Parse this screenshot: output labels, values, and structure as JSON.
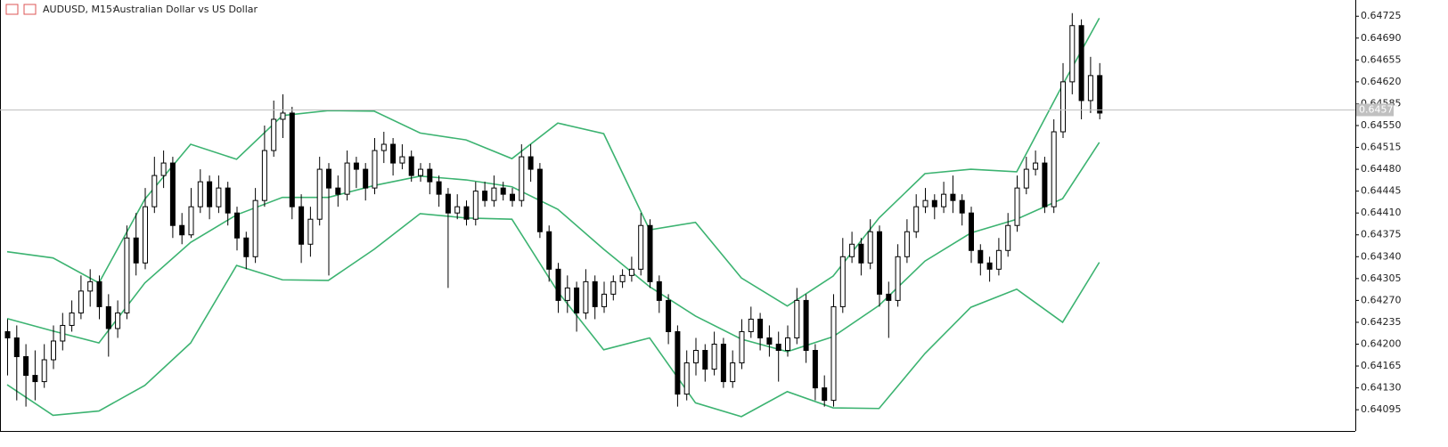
{
  "chart_data": {
    "type": "candlestick",
    "symbol": "AUDUSD, M15:",
    "title": "Australian Dollar vs US Dollar",
    "ylim": [
      0.64061,
      0.64751
    ],
    "yticks": [
      0.64725,
      {
        "value": 0.6469,
        "label": "0.64690"
      },
      0.64655,
      {
        "value": 0.6462,
        "label": "0.64620"
      },
      0.64585,
      {
        "value": 0.6455,
        "label": "0.64550"
      },
      0.64515,
      {
        "value": 0.6448,
        "label": "0.64480"
      },
      0.64445,
      {
        "value": 0.6441,
        "label": "0.64410"
      },
      0.64375,
      {
        "value": 0.6434,
        "label": "0.64340"
      },
      0.64305,
      {
        "value": 0.6427,
        "label": "0.64270"
      },
      0.64235,
      {
        "value": 0.642,
        "label": "0.64200"
      },
      0.64165,
      {
        "value": 0.6413,
        "label": "0.64130"
      },
      0.64095
    ],
    "last_price": 0.64575,
    "up_color": "#ffffff",
    "down_color": "#000000",
    "ohlc": [
      [
        0.6422,
        0.6424,
        0.6415,
        0.6421
      ],
      [
        0.6421,
        0.6423,
        0.6411,
        0.6418
      ],
      [
        0.6418,
        0.642,
        0.641,
        0.6415
      ],
      [
        0.6415,
        0.6419,
        0.6411,
        0.6414
      ],
      [
        0.6414,
        0.642,
        0.6413,
        0.64175
      ],
      [
        0.64175,
        0.6423,
        0.6416,
        0.64205
      ],
      [
        0.64205,
        0.6425,
        0.6419,
        0.6423
      ],
      [
        0.6423,
        0.6427,
        0.6422,
        0.6425
      ],
      [
        0.6425,
        0.6431,
        0.6424,
        0.64285
      ],
      [
        0.64285,
        0.6432,
        0.6426,
        0.643
      ],
      [
        0.643,
        0.6431,
        0.6424,
        0.6426
      ],
      [
        0.6426,
        0.6428,
        0.6418,
        0.64225
      ],
      [
        0.64225,
        0.6427,
        0.6421,
        0.6425
      ],
      [
        0.6425,
        0.6439,
        0.6424,
        0.6437
      ],
      [
        0.6437,
        0.6441,
        0.6431,
        0.6433
      ],
      [
        0.6433,
        0.6445,
        0.6432,
        0.6442
      ],
      [
        0.6442,
        0.645,
        0.6441,
        0.6447
      ],
      [
        0.6447,
        0.6451,
        0.6445,
        0.6449
      ],
      [
        0.6449,
        0.645,
        0.6437,
        0.6439
      ],
      [
        0.6439,
        0.6441,
        0.6436,
        0.64375
      ],
      [
        0.64375,
        0.6445,
        0.6437,
        0.6442
      ],
      [
        0.6442,
        0.6448,
        0.6441,
        0.6446
      ],
      [
        0.6446,
        0.6447,
        0.644,
        0.6442
      ],
      [
        0.6442,
        0.6447,
        0.6441,
        0.6445
      ],
      [
        0.6445,
        0.6446,
        0.6439,
        0.6441
      ],
      [
        0.6441,
        0.6442,
        0.6435,
        0.6437
      ],
      [
        0.6437,
        0.6438,
        0.6432,
        0.6434
      ],
      [
        0.6434,
        0.6445,
        0.6433,
        0.6443
      ],
      [
        0.6443,
        0.6455,
        0.6442,
        0.6451
      ],
      [
        0.6451,
        0.6459,
        0.645,
        0.6456
      ],
      [
        0.6456,
        0.646,
        0.6453,
        0.6457
      ],
      [
        0.6457,
        0.6458,
        0.644,
        0.6442
      ],
      [
        0.6442,
        0.6444,
        0.6433,
        0.6436
      ],
      [
        0.6436,
        0.6442,
        0.6434,
        0.644
      ],
      [
        0.644,
        0.645,
        0.6439,
        0.6448
      ],
      [
        0.6448,
        0.6449,
        0.6431,
        0.6445
      ],
      [
        0.6445,
        0.6447,
        0.6442,
        0.6444
      ],
      [
        0.6444,
        0.6451,
        0.6443,
        0.6449
      ],
      [
        0.6449,
        0.645,
        0.6445,
        0.6448
      ],
      [
        0.6448,
        0.6449,
        0.6443,
        0.6445
      ],
      [
        0.6445,
        0.6453,
        0.6444,
        0.6451
      ],
      [
        0.6451,
        0.6454,
        0.6449,
        0.6452
      ],
      [
        0.6452,
        0.6453,
        0.6447,
        0.6449
      ],
      [
        0.6449,
        0.6452,
        0.6448,
        0.645
      ],
      [
        0.645,
        0.6451,
        0.6446,
        0.6447
      ],
      [
        0.6447,
        0.6449,
        0.6446,
        0.6448
      ],
      [
        0.6448,
        0.6449,
        0.6444,
        0.6446
      ],
      [
        0.6446,
        0.6447,
        0.6442,
        0.6444
      ],
      [
        0.6444,
        0.6445,
        0.6429,
        0.6441
      ],
      [
        0.6441,
        0.6444,
        0.644,
        0.6442
      ],
      [
        0.6442,
        0.6443,
        0.6439,
        0.644
      ],
      [
        0.644,
        0.6446,
        0.6439,
        0.64445
      ],
      [
        0.64445,
        0.6446,
        0.6442,
        0.6443
      ],
      [
        0.6443,
        0.6447,
        0.6442,
        0.6445
      ],
      [
        0.6445,
        0.6446,
        0.6443,
        0.6444
      ],
      [
        0.6444,
        0.6445,
        0.6442,
        0.6443
      ],
      [
        0.6443,
        0.6452,
        0.6442,
        0.645
      ],
      [
        0.645,
        0.6452,
        0.6446,
        0.6448
      ],
      [
        0.6448,
        0.6449,
        0.6437,
        0.6438
      ],
      [
        0.6438,
        0.6439,
        0.643,
        0.6432
      ],
      [
        0.6432,
        0.6433,
        0.6425,
        0.6427
      ],
      [
        0.6427,
        0.6431,
        0.6425,
        0.6429
      ],
      [
        0.6429,
        0.643,
        0.6422,
        0.6425
      ],
      [
        0.6425,
        0.6432,
        0.6424,
        0.643
      ],
      [
        0.643,
        0.6431,
        0.6424,
        0.6426
      ],
      [
        0.6426,
        0.643,
        0.6425,
        0.6428
      ],
      [
        0.6428,
        0.6431,
        0.6427,
        0.643
      ],
      [
        0.643,
        0.6432,
        0.6429,
        0.6431
      ],
      [
        0.6431,
        0.6434,
        0.643,
        0.6432
      ],
      [
        0.6432,
        0.6441,
        0.6431,
        0.6439
      ],
      [
        0.6439,
        0.644,
        0.6429,
        0.643
      ],
      [
        0.643,
        0.6431,
        0.6425,
        0.6427
      ],
      [
        0.6427,
        0.6428,
        0.642,
        0.6422
      ],
      [
        0.6422,
        0.6423,
        0.641,
        0.6412
      ],
      [
        0.6412,
        0.6419,
        0.6411,
        0.6417
      ],
      [
        0.6417,
        0.6421,
        0.6415,
        0.6419
      ],
      [
        0.6419,
        0.642,
        0.6414,
        0.6416
      ],
      [
        0.6416,
        0.6422,
        0.6415,
        0.642
      ],
      [
        0.642,
        0.6421,
        0.6413,
        0.6414
      ],
      [
        0.6414,
        0.6419,
        0.6413,
        0.6417
      ],
      [
        0.6417,
        0.6424,
        0.6416,
        0.6422
      ],
      [
        0.6422,
        0.6426,
        0.6421,
        0.6424
      ],
      [
        0.6424,
        0.6425,
        0.6419,
        0.6421
      ],
      [
        0.6421,
        0.6423,
        0.6418,
        0.642
      ],
      [
        0.642,
        0.6422,
        0.6414,
        0.6419
      ],
      [
        0.6419,
        0.6423,
        0.6418,
        0.6421
      ],
      [
        0.6421,
        0.6429,
        0.642,
        0.6427
      ],
      [
        0.6427,
        0.6428,
        0.6417,
        0.6419
      ],
      [
        0.6419,
        0.642,
        0.6411,
        0.6413
      ],
      [
        0.6413,
        0.6415,
        0.641,
        0.6411
      ],
      [
        0.6411,
        0.6428,
        0.641,
        0.6426
      ],
      [
        0.6426,
        0.6437,
        0.6425,
        0.6434
      ],
      [
        0.6434,
        0.6438,
        0.6433,
        0.6436
      ],
      [
        0.6436,
        0.6437,
        0.6431,
        0.6433
      ],
      [
        0.6433,
        0.644,
        0.6432,
        0.6438
      ],
      [
        0.6438,
        0.6439,
        0.6426,
        0.6428
      ],
      [
        0.6428,
        0.643,
        0.6421,
        0.6427
      ],
      [
        0.6427,
        0.6436,
        0.6426,
        0.6434
      ],
      [
        0.6434,
        0.644,
        0.6433,
        0.6438
      ],
      [
        0.6438,
        0.6444,
        0.6437,
        0.6442
      ],
      [
        0.6442,
        0.6445,
        0.6441,
        0.6443
      ],
      [
        0.6443,
        0.6444,
        0.644,
        0.6442
      ],
      [
        0.6442,
        0.6446,
        0.6441,
        0.6444
      ],
      [
        0.6444,
        0.6447,
        0.6441,
        0.6443
      ],
      [
        0.6443,
        0.6444,
        0.6439,
        0.6441
      ],
      [
        0.6441,
        0.6442,
        0.6433,
        0.6435
      ],
      [
        0.6435,
        0.6436,
        0.6431,
        0.6433
      ],
      [
        0.6433,
        0.6434,
        0.643,
        0.6432
      ],
      [
        0.6432,
        0.6437,
        0.6431,
        0.6435
      ],
      [
        0.6435,
        0.6441,
        0.6434,
        0.6439
      ],
      [
        0.6439,
        0.6447,
        0.6438,
        0.6445
      ],
      [
        0.6445,
        0.645,
        0.6444,
        0.6448
      ],
      [
        0.6448,
        0.6451,
        0.6447,
        0.6449
      ],
      [
        0.6449,
        0.645,
        0.6441,
        0.6442
      ],
      [
        0.6442,
        0.6456,
        0.6441,
        0.6454
      ],
      [
        0.6454,
        0.6465,
        0.6453,
        0.6462
      ],
      [
        0.6462,
        0.6473,
        0.646,
        0.6471
      ],
      [
        0.6471,
        0.6472,
        0.6456,
        0.6459
      ],
      [
        0.6459,
        0.6466,
        0.6457,
        0.6463
      ],
      [
        0.6463,
        0.6465,
        0.6456,
        0.6457
      ]
    ],
    "band_x": [
      0,
      5,
      10,
      15,
      20,
      25,
      30,
      35,
      40,
      45,
      50,
      55,
      60,
      65,
      70,
      75,
      80,
      85,
      90,
      95,
      100,
      105,
      110,
      115,
      119
    ],
    "bands": [
      {
        "color": "#3cb371",
        "values": [
          0.64348,
          0.64338,
          0.64298,
          0.64432,
          0.6452,
          0.64496,
          0.64566,
          0.64574,
          0.64573,
          0.64538,
          0.64527,
          0.64497,
          0.64554,
          0.64537,
          0.64383,
          0.64395,
          0.64306,
          0.64261,
          0.64309,
          0.64402,
          0.64473,
          0.6448,
          0.64476,
          0.64615,
          0.64722
        ]
      },
      {
        "color": "#3cb371",
        "values": [
          0.64241,
          0.64221,
          0.64202,
          0.64298,
          0.64363,
          0.64407,
          0.64435,
          0.64435,
          0.64454,
          0.64469,
          0.64463,
          0.64452,
          0.64416,
          0.64352,
          0.64292,
          0.64245,
          0.64208,
          0.64188,
          0.64212,
          0.64262,
          0.64333,
          0.64378,
          0.644,
          0.64433,
          0.64523
        ]
      },
      {
        "color": "#3cb371",
        "values": [
          0.64135,
          0.64086,
          0.64093,
          0.64134,
          0.64202,
          0.64326,
          0.64303,
          0.64302,
          0.64352,
          0.64409,
          0.64402,
          0.644,
          0.64284,
          0.64191,
          0.6421,
          0.64106,
          0.64084,
          0.64124,
          0.64098,
          0.64097,
          0.64185,
          0.64259,
          0.64288,
          0.64235,
          0.64331
        ]
      }
    ]
  }
}
